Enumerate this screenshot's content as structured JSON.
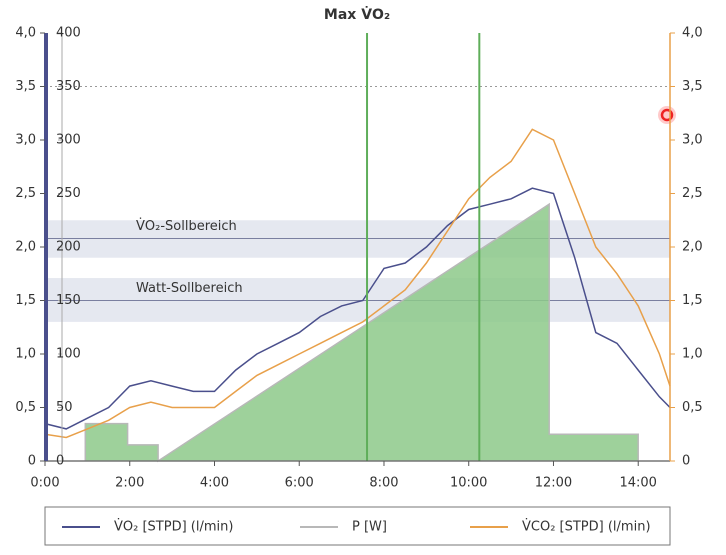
{
  "chart_data": {
    "type": "line",
    "title": "Max V̇O₂",
    "x": [
      0,
      0.5,
      1,
      1.5,
      2,
      2.5,
      3,
      3.5,
      4,
      4.5,
      5,
      5.5,
      6,
      6.5,
      7,
      7.5,
      8,
      8.5,
      9,
      9.5,
      10,
      10.5,
      11,
      11.5,
      12,
      12.5,
      13,
      13.5,
      14,
      14.5,
      14.75
    ],
    "xlim": [
      0,
      14.75
    ],
    "xticks": [
      {
        "value": 0,
        "label": "0:00"
      },
      {
        "value": 2,
        "label": "2:00"
      },
      {
        "value": 4,
        "label": "4:00"
      },
      {
        "value": 6,
        "label": "6:00"
      },
      {
        "value": 8,
        "label": "8:00"
      },
      {
        "value": 10,
        "label": "10:00"
      },
      {
        "value": 12,
        "label": "12:00"
      },
      {
        "value": 14,
        "label": "14:00"
      }
    ],
    "ylim": [
      0,
      4
    ],
    "yticks": [
      {
        "value": 0,
        "label": "0"
      },
      {
        "value": 0.5,
        "label": "0,5"
      },
      {
        "value": 1,
        "label": "1,0"
      },
      {
        "value": 1.5,
        "label": "1,5"
      },
      {
        "value": 2,
        "label": "2,0"
      },
      {
        "value": 2.5,
        "label": "2,5"
      },
      {
        "value": 3,
        "label": "3,0"
      },
      {
        "value": 3.5,
        "label": "3,5"
      },
      {
        "value": 4,
        "label": "4,0"
      }
    ],
    "y2lim": [
      0,
      400
    ],
    "y2ticks": [
      0,
      50,
      100,
      150,
      200,
      250,
      300,
      350,
      400
    ],
    "series": [
      {
        "name": "V̇O₂ [STPD] (l/min)",
        "color": "#4a4f8c",
        "values": [
          0.35,
          0.3,
          0.4,
          0.5,
          0.7,
          0.75,
          0.7,
          0.65,
          0.65,
          0.85,
          1.0,
          1.1,
          1.2,
          1.35,
          1.45,
          1.5,
          1.8,
          1.85,
          2.0,
          2.2,
          2.35,
          2.4,
          2.45,
          2.55,
          2.5,
          1.9,
          1.2,
          1.1,
          0.85,
          0.6,
          0.5
        ]
      },
      {
        "name": "P [W]",
        "color": "#b8b8b8",
        "fill": "#8dc98a",
        "axis": "y2",
        "x": [
          0,
          0.95,
          0.95,
          1.95,
          1.95,
          2.67,
          2.67,
          11.9,
          11.9,
          14.0,
          14.0,
          14.75
        ],
        "values": [
          0,
          0,
          35,
          35,
          15,
          15,
          0,
          240,
          25,
          25,
          0,
          0
        ]
      },
      {
        "name": "V̇CO₂ [STPD] (l/min)",
        "color": "#e8a04a",
        "values": [
          0.25,
          0.22,
          0.3,
          0.38,
          0.5,
          0.55,
          0.5,
          0.5,
          0.5,
          0.65,
          0.8,
          0.9,
          1.0,
          1.1,
          1.2,
          1.3,
          1.45,
          1.6,
          1.85,
          2.15,
          2.45,
          2.65,
          2.8,
          3.1,
          3.0,
          2.5,
          2.0,
          1.75,
          1.45,
          1.0,
          0.7
        ]
      }
    ],
    "bands": [
      {
        "label": "V̇O₂-Sollbereich",
        "value": 2.08,
        "range": [
          1.9,
          2.25
        ],
        "axis": "y"
      },
      {
        "label": "Watt-Sollbereich",
        "value": 150,
        "range": [
          130,
          171
        ],
        "axis": "y2"
      }
    ],
    "vlines": [
      7.6,
      10.25
    ],
    "vline_color": "#5fae5a",
    "dashed_line": 3.5
  }
}
